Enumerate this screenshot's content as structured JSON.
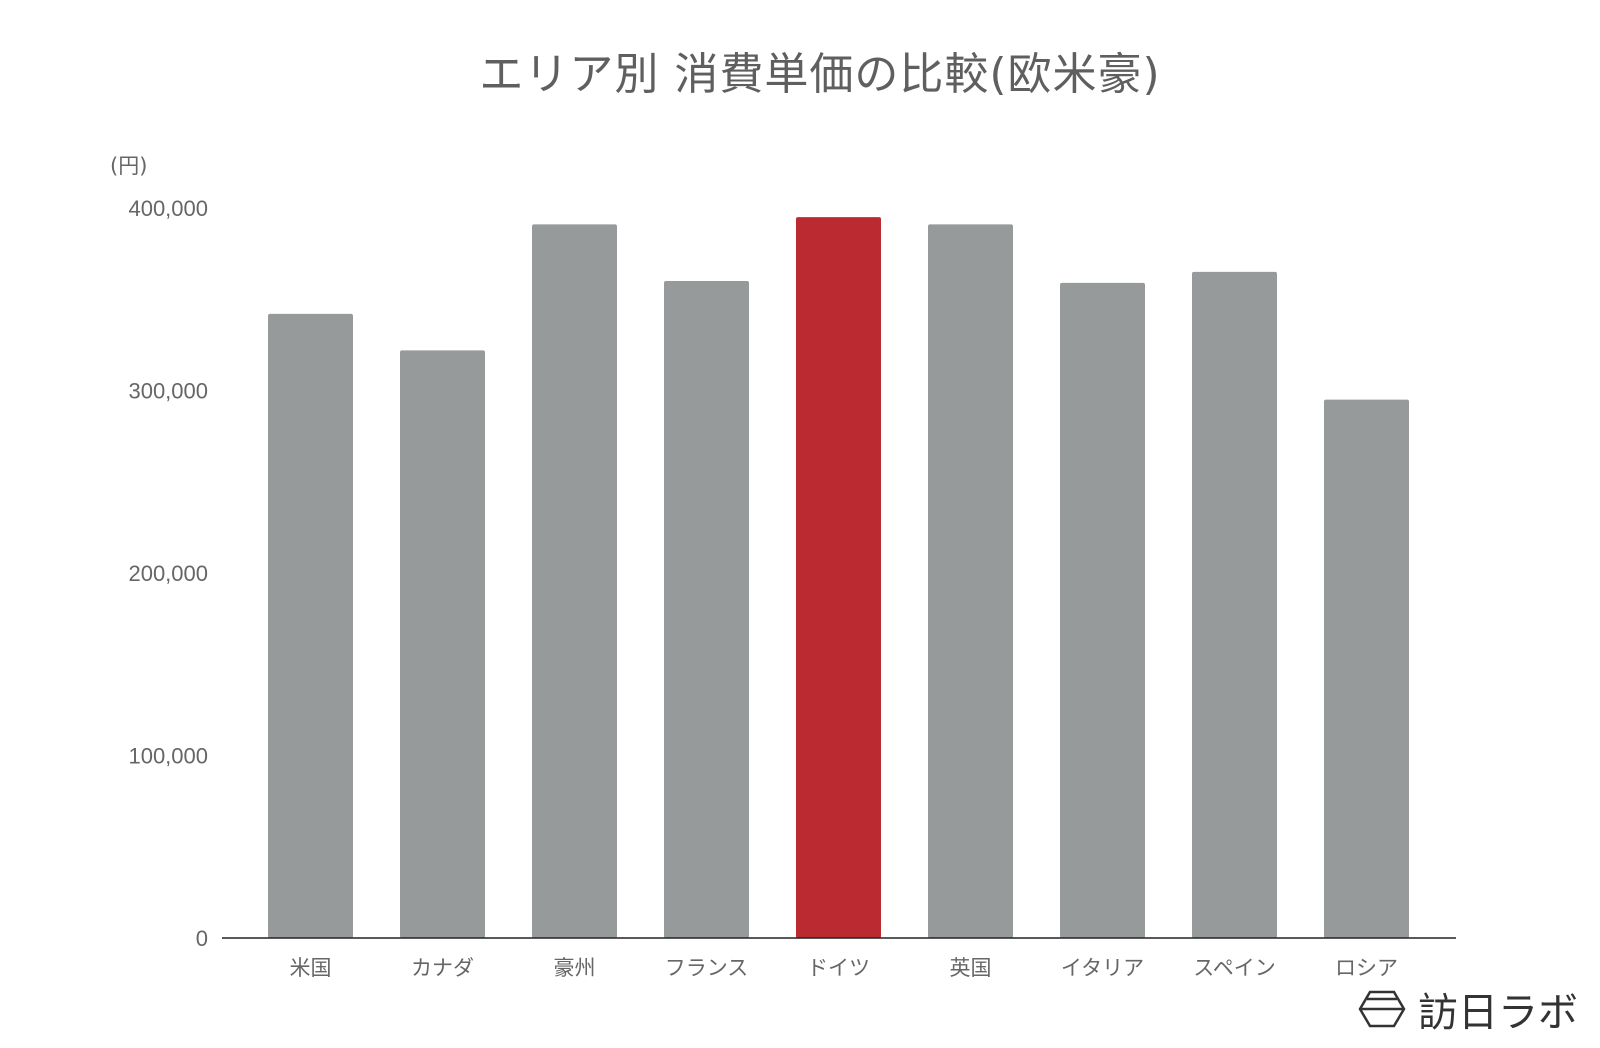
{
  "chart_data": {
    "type": "bar",
    "title": "エリア別 消費単価の比較(欧米豪)",
    "ylabel": "(円)",
    "xlabel": "",
    "categories": [
      "米国",
      "カナダ",
      "豪州",
      "フランス",
      "ドイツ",
      "英国",
      "イタリア",
      "スペイン",
      "ロシア"
    ],
    "values": [
      342000,
      322000,
      391000,
      360000,
      395000,
      391000,
      359000,
      365000,
      295000
    ],
    "ylim": [
      0,
      400000
    ],
    "yticks": [
      0,
      100000,
      200000,
      300000,
      400000
    ],
    "ytick_labels": [
      "0",
      "100,000",
      "200,000",
      "300,000",
      "400,000"
    ],
    "grid": false,
    "highlight_category": "ドイツ",
    "colors": {
      "default": "#979a9a",
      "highlight": "#bb2a31"
    }
  },
  "logo": {
    "text": "訪日ラボ"
  }
}
